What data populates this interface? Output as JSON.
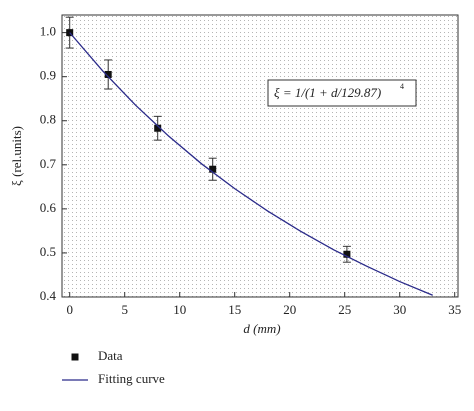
{
  "chart_data": {
    "type": "scatter",
    "xlabel": "d (mm)",
    "ylabel": "ξ (rel.units)",
    "annotation": "ξ = 1/(1 + d/129.87)",
    "annotation_exponent": "4",
    "xlim": [
      -0.7,
      35.3
    ],
    "xticks": [
      0,
      5,
      10,
      15,
      20,
      25,
      30,
      35
    ],
    "ylim": [
      0.4,
      1.04
    ],
    "yticks": [
      0.4,
      0.5,
      0.6,
      0.7,
      0.8,
      0.9,
      {
        "value": 1,
        "label": "1.0"
      }
    ],
    "series": [
      {
        "name": "Data",
        "type": "scatter",
        "color": "#111111",
        "x": [
          0,
          3.5,
          8,
          13,
          25.2
        ],
        "values": [
          1.0,
          0.905,
          0.783,
          0.69,
          0.497
        ],
        "errors": [
          0.035,
          0.033,
          0.027,
          0.025,
          0.018
        ]
      },
      {
        "name": "Fitting curve",
        "type": "line",
        "color": "#2b2b8a",
        "x": [
          0,
          3,
          6,
          9,
          12,
          15,
          18,
          21,
          24,
          27,
          30,
          33
        ],
        "values": [
          1.0,
          0.913,
          0.835,
          0.765,
          0.702,
          0.646,
          0.595,
          0.549,
          0.507,
          0.47,
          0.435,
          0.404
        ]
      }
    ]
  }
}
